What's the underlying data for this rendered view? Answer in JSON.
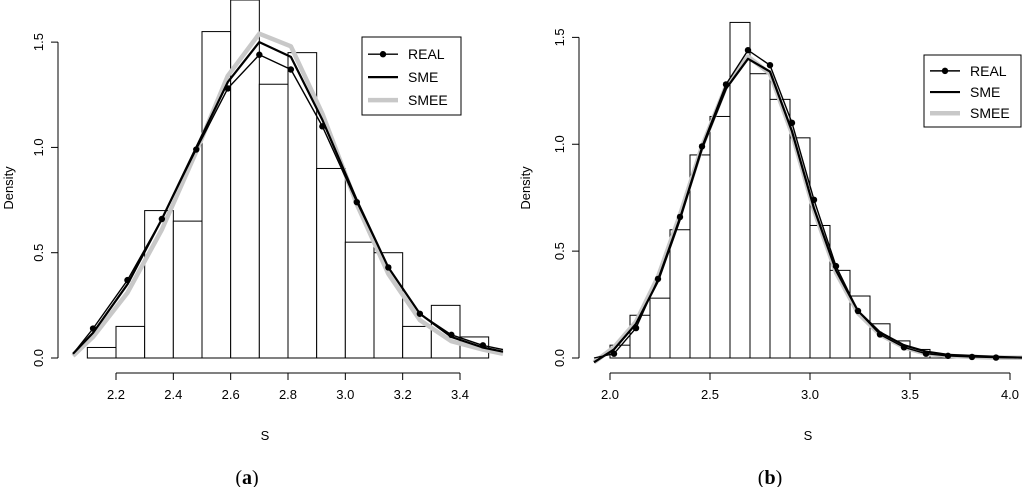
{
  "colors": {
    "real": "#000000",
    "sme": "#000000",
    "smee": "#c8c8c8",
    "bar_fill": "#ffffff",
    "bar_stroke": "#000000"
  },
  "chart_data": [
    {
      "type": "histogram",
      "panel_label": "a",
      "xlabel": "S",
      "ylabel": "Density",
      "xlim": [
        2.05,
        3.55
      ],
      "ylim": [
        0,
        1.7
      ],
      "xticks": [
        "2.2",
        "2.4",
        "2.6",
        "2.8",
        "3.0",
        "3.2",
        "3.4"
      ],
      "yticks": [
        "0.0",
        "0.5",
        "1.0",
        "1.5"
      ],
      "legend": [
        "REAL",
        "SME",
        "SMEE"
      ],
      "bins": [
        {
          "x0": 2.1,
          "x1": 2.2,
          "d": 0.05
        },
        {
          "x0": 2.2,
          "x1": 2.3,
          "d": 0.15
        },
        {
          "x0": 2.3,
          "x1": 2.4,
          "d": 0.7
        },
        {
          "x0": 2.4,
          "x1": 2.5,
          "d": 0.65
        },
        {
          "x0": 2.5,
          "x1": 2.6,
          "d": 1.55
        },
        {
          "x0": 2.6,
          "x1": 2.7,
          "d": 1.7
        },
        {
          "x0": 2.7,
          "x1": 2.8,
          "d": 1.3
        },
        {
          "x0": 2.8,
          "x1": 2.9,
          "d": 1.45
        },
        {
          "x0": 2.9,
          "x1": 3.0,
          "d": 0.9
        },
        {
          "x0": 3.0,
          "x1": 3.1,
          "d": 0.55
        },
        {
          "x0": 3.1,
          "x1": 3.2,
          "d": 0.5
        },
        {
          "x0": 3.2,
          "x1": 3.3,
          "d": 0.15
        },
        {
          "x0": 3.3,
          "x1": 3.4,
          "d": 0.25
        },
        {
          "x0": 3.4,
          "x1": 3.5,
          "d": 0.1
        }
      ],
      "series": [
        {
          "name": "REAL",
          "points": true,
          "x": [
            2.05,
            2.12,
            2.24,
            2.36,
            2.48,
            2.59,
            2.7,
            2.81,
            2.92,
            3.04,
            3.15,
            3.26,
            3.37,
            3.48,
            3.55
          ],
          "y": [
            0.02,
            0.14,
            0.37,
            0.66,
            0.99,
            1.28,
            1.44,
            1.37,
            1.1,
            0.74,
            0.43,
            0.21,
            0.11,
            0.06,
            0.04
          ]
        },
        {
          "name": "SME",
          "points": false,
          "x": [
            2.05,
            2.12,
            2.24,
            2.36,
            2.48,
            2.59,
            2.7,
            2.81,
            2.92,
            3.04,
            3.15,
            3.26,
            3.37,
            3.48,
            3.55
          ],
          "y": [
            0.02,
            0.12,
            0.35,
            0.66,
            1.0,
            1.31,
            1.5,
            1.43,
            1.13,
            0.75,
            0.43,
            0.21,
            0.1,
            0.05,
            0.03
          ]
        },
        {
          "name": "SMEE",
          "points": false,
          "x": [
            2.05,
            2.12,
            2.24,
            2.36,
            2.48,
            2.59,
            2.7,
            2.81,
            2.92,
            3.04,
            3.15,
            3.26,
            3.37,
            3.48,
            3.55
          ],
          "y": [
            0.01,
            0.1,
            0.31,
            0.61,
            0.98,
            1.34,
            1.54,
            1.48,
            1.16,
            0.73,
            0.4,
            0.18,
            0.08,
            0.04,
            0.02
          ]
        }
      ]
    },
    {
      "type": "histogram",
      "panel_label": "b",
      "xlabel": "S",
      "ylabel": "Density",
      "xlim": [
        1.92,
        4.06
      ],
      "ylim": [
        0,
        1.6
      ],
      "xticks": [
        "2.0",
        "2.5",
        "3.0",
        "3.5",
        "4.0"
      ],
      "yticks": [
        "0.0",
        "0.5",
        "1.0",
        "1.5"
      ],
      "legend": [
        "REAL",
        "SME",
        "SMEE"
      ],
      "bins": [
        {
          "x0": 2.0,
          "x1": 2.1,
          "d": 0.06
        },
        {
          "x0": 2.1,
          "x1": 2.2,
          "d": 0.2
        },
        {
          "x0": 2.2,
          "x1": 2.3,
          "d": 0.28
        },
        {
          "x0": 2.3,
          "x1": 2.4,
          "d": 0.6
        },
        {
          "x0": 2.4,
          "x1": 2.5,
          "d": 0.95
        },
        {
          "x0": 2.5,
          "x1": 2.6,
          "d": 1.13
        },
        {
          "x0": 2.6,
          "x1": 2.7,
          "d": 1.57
        },
        {
          "x0": 2.7,
          "x1": 2.8,
          "d": 1.33
        },
        {
          "x0": 2.8,
          "x1": 2.9,
          "d": 1.21
        },
        {
          "x0": 2.9,
          "x1": 3.0,
          "d": 1.03
        },
        {
          "x0": 3.0,
          "x1": 3.1,
          "d": 0.62
        },
        {
          "x0": 3.1,
          "x1": 3.2,
          "d": 0.41
        },
        {
          "x0": 3.2,
          "x1": 3.3,
          "d": 0.29
        },
        {
          "x0": 3.3,
          "x1": 3.4,
          "d": 0.16
        },
        {
          "x0": 3.4,
          "x1": 3.5,
          "d": 0.08
        },
        {
          "x0": 3.5,
          "x1": 3.6,
          "d": 0.04
        },
        {
          "x0": 3.6,
          "x1": 3.7,
          "d": 0.015
        },
        {
          "x0": 3.7,
          "x1": 3.8,
          "d": 0.01
        },
        {
          "x0": 3.8,
          "x1": 3.9,
          "d": 0.005
        },
        {
          "x0": 3.9,
          "x1": 4.0,
          "d": 0.005
        }
      ],
      "series": [
        {
          "name": "REAL",
          "points": true,
          "x": [
            1.92,
            2.02,
            2.13,
            2.24,
            2.35,
            2.46,
            2.58,
            2.69,
            2.8,
            2.91,
            3.02,
            3.13,
            3.24,
            3.35,
            3.47,
            3.58,
            3.69,
            3.81,
            3.93,
            4.04
          ],
          "y": [
            0.0,
            0.02,
            0.14,
            0.37,
            0.66,
            0.99,
            1.28,
            1.44,
            1.37,
            1.1,
            0.74,
            0.43,
            0.22,
            0.11,
            0.05,
            0.02,
            0.01,
            0.005,
            0.002,
            0.001
          ]
        },
        {
          "name": "SME",
          "points": false,
          "x": [
            1.92,
            2.02,
            2.13,
            2.24,
            2.35,
            2.46,
            2.58,
            2.69,
            2.8,
            2.91,
            3.02,
            3.13,
            3.24,
            3.35,
            3.47,
            3.58,
            3.69,
            3.81,
            3.93,
            4.06
          ],
          "y": [
            -0.02,
            0.04,
            0.16,
            0.36,
            0.65,
            0.98,
            1.26,
            1.4,
            1.34,
            1.06,
            0.7,
            0.41,
            0.22,
            0.12,
            0.06,
            0.03,
            0.015,
            0.01,
            0.005,
            0.002
          ]
        },
        {
          "name": "SMEE",
          "points": false,
          "x": [
            1.92,
            2.02,
            2.13,
            2.24,
            2.35,
            2.46,
            2.58,
            2.69,
            2.8,
            2.91,
            3.02,
            3.13,
            3.24,
            3.35,
            3.47,
            3.58,
            3.69,
            3.81,
            3.93,
            4.06
          ],
          "y": [
            -0.02,
            0.05,
            0.17,
            0.38,
            0.67,
            0.99,
            1.27,
            1.41,
            1.33,
            1.05,
            0.69,
            0.4,
            0.21,
            0.11,
            0.05,
            0.02,
            0.01,
            0.005,
            0.002,
            0.001
          ]
        }
      ]
    }
  ]
}
